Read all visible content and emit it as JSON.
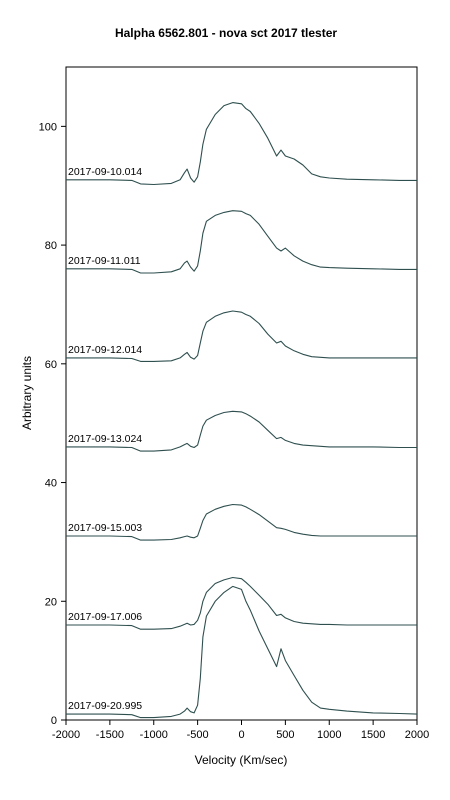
{
  "chart_data": {
    "type": "line",
    "title": "Halpha 6562.801 - nova sct 2017   tlester",
    "xlabel": "Velocity (Km/sec)",
    "ylabel": "Arbitrary units",
    "xlim": [
      -2000,
      2000
    ],
    "ylim": [
      0,
      110
    ],
    "xticks": [
      -2000,
      -1500,
      -1000,
      -500,
      0,
      500,
      1000,
      1500,
      2000
    ],
    "yticks": [
      0,
      20,
      40,
      60,
      80,
      100
    ],
    "tick_labels_x": [
      "-2000",
      "-1500",
      "-1000",
      "-500",
      "0",
      "500",
      "1000",
      "1500",
      "2000"
    ],
    "tick_labels_y": [
      "0",
      "20",
      "40",
      "60",
      "80",
      "100"
    ],
    "grid": false,
    "line_color": "#2f4f4f",
    "x": [
      -2000,
      -1500,
      -1250,
      -1150,
      -1000,
      -800,
      -700,
      -650,
      -620,
      -580,
      -540,
      -500,
      -470,
      -440,
      -400,
      -300,
      -200,
      -100,
      0,
      50,
      100,
      200,
      300,
      400,
      450,
      500,
      600,
      700,
      800,
      900,
      1000,
      1200,
      1500,
      1800,
      2000
    ],
    "series": [
      {
        "label": "2017-09-10.014",
        "values": [
          91,
          91,
          90.9,
          90.3,
          90.2,
          90.4,
          91,
          92.2,
          92.8,
          91.3,
          90.6,
          91.5,
          94,
          97,
          99.5,
          102,
          103.5,
          104,
          103.8,
          103,
          102.5,
          100.5,
          98,
          95,
          96,
          95,
          94.5,
          93.5,
          92,
          91.5,
          91.3,
          91.1,
          91,
          90.9,
          90.9
        ]
      },
      {
        "label": "2017-09-11.011",
        "values": [
          76,
          76,
          75.9,
          75.3,
          75.3,
          75.5,
          76,
          77,
          77.3,
          76.3,
          75.6,
          76.5,
          79,
          82,
          84,
          85,
          85.5,
          85.8,
          85.7,
          85.3,
          85,
          83.5,
          81.5,
          79.5,
          79,
          79.5,
          78.2,
          77.3,
          76.7,
          76.3,
          76.2,
          76.1,
          76,
          75.9,
          75.9
        ]
      },
      {
        "label": "2017-09-12.014",
        "values": [
          61,
          61,
          60.9,
          60.4,
          60.4,
          60.5,
          61,
          61.6,
          61.9,
          61.1,
          60.8,
          61.4,
          63.5,
          65.5,
          67,
          68,
          68.6,
          68.9,
          68.7,
          68.3,
          68,
          66.8,
          65,
          63.5,
          63.8,
          63,
          62.2,
          61.6,
          61.2,
          61.1,
          61,
          61,
          61,
          61,
          61
        ]
      },
      {
        "label": "2017-09-13.024",
        "values": [
          46,
          46,
          45.9,
          45.3,
          45.3,
          45.5,
          46,
          46.4,
          46.6,
          46.1,
          45.9,
          46.3,
          48,
          49.5,
          50.5,
          51.3,
          51.8,
          52,
          51.9,
          51.6,
          51.2,
          50.2,
          48.8,
          47.4,
          47.6,
          47.1,
          46.6,
          46.3,
          46.2,
          46.1,
          46,
          46,
          46,
          45.9,
          45.9
        ]
      },
      {
        "label": "2017-09-15.003",
        "values": [
          31,
          31,
          30.9,
          30.3,
          30.3,
          30.4,
          30.7,
          30.9,
          31,
          30.8,
          30.7,
          31,
          32.3,
          33.6,
          34.7,
          35.5,
          36,
          36.3,
          36.2,
          35.9,
          35.5,
          34.6,
          33.5,
          32.4,
          32.3,
          32.1,
          31.6,
          31.3,
          31.1,
          31,
          31,
          31,
          31,
          31,
          31
        ]
      },
      {
        "label": "2017-09-17.006",
        "values": [
          16,
          16,
          15.9,
          15.3,
          15.3,
          15.4,
          15.8,
          16.1,
          16.3,
          16,
          16.1,
          16.8,
          18,
          20,
          21.5,
          23,
          23.6,
          24,
          23.8,
          23.2,
          22.5,
          21,
          19.5,
          17.6,
          17.8,
          17.2,
          16.6,
          16.3,
          16.2,
          16.1,
          16.1,
          16,
          16,
          16,
          16
        ]
      },
      {
        "label": "2017-09-20.995",
        "values": [
          1,
          1,
          0.9,
          0.4,
          0.4,
          0.6,
          1,
          1.5,
          2,
          1.4,
          1.2,
          2.5,
          7,
          14,
          17.5,
          20,
          21.5,
          22.5,
          22,
          20,
          18.5,
          15,
          12,
          9,
          12,
          10,
          7.5,
          5,
          3,
          2,
          1.8,
          1.5,
          1.2,
          1.1,
          1
        ]
      }
    ]
  }
}
